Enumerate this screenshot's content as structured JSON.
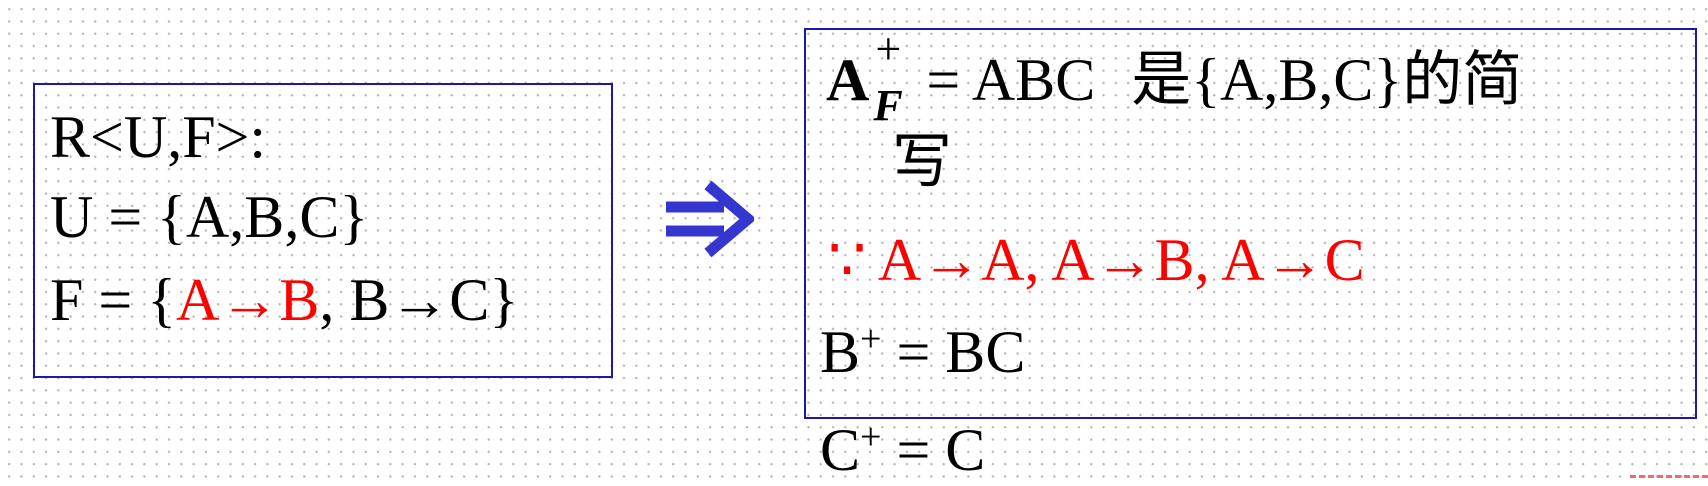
{
  "colors": {
    "box_border": "#1a1aa6",
    "highlight": "#ff0000",
    "arrow": "#3535d0"
  },
  "left_box": {
    "line1": "R<U,F>:",
    "line2": "U = {A,B,C}",
    "line3": {
      "prefix": "F = {",
      "red": "A→B",
      "rest": ", B→C}"
    }
  },
  "arrow_icon": "double-right-arrow-icon",
  "right_box": {
    "line1": {
      "base": "A",
      "sup": "+",
      "sub": "F",
      "eq": " = ABC",
      "note": "是{A,B,C}的简"
    },
    "line1_wrap": "写",
    "line2": "∵ A→A, A→B, A→C",
    "line3": {
      "base": "B",
      "sup": "+",
      "rest": " = BC"
    }
  },
  "outside_line": {
    "base": "C",
    "sup": "+",
    "rest": " = C"
  }
}
